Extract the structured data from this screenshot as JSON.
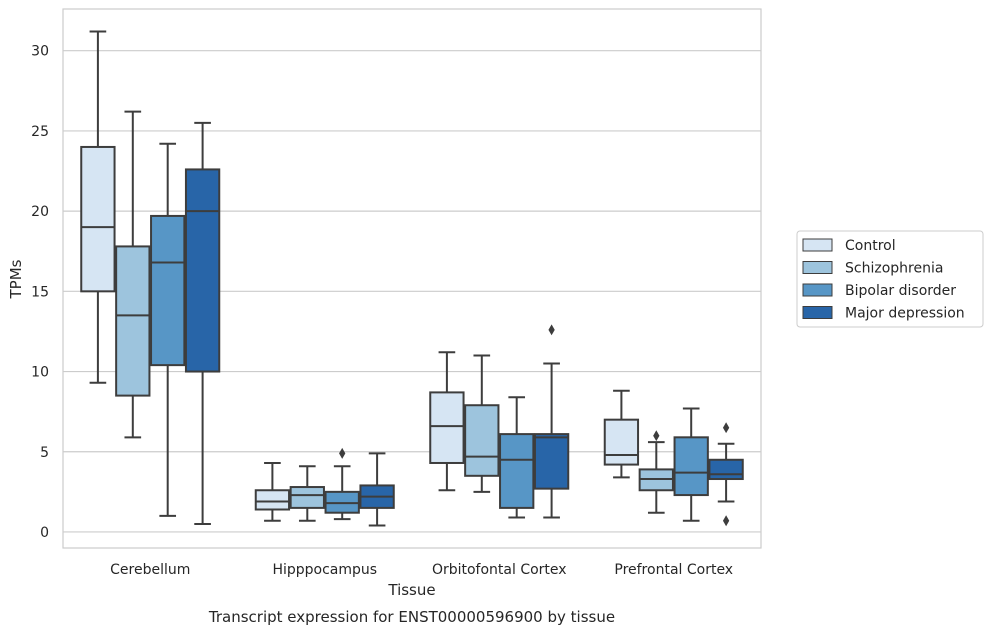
{
  "caption": "Transcript expression for ENST00000596900 by tissue",
  "chart_data": {
    "type": "box",
    "xlabel": "Tissue",
    "ylabel": "TPMs",
    "ylim": [
      -1,
      32.6
    ],
    "yticks": [
      0,
      5,
      10,
      15,
      20,
      25,
      30
    ],
    "grid": "horizontal",
    "legend_position": "right",
    "categories": [
      "Cerebellum",
      "Hipppocampus",
      "Orbitofontal Cortex",
      "Prefrontal Cortex"
    ],
    "series": [
      {
        "name": "Control",
        "color": "#d6e5f3",
        "boxes": [
          {
            "whislo": 9.3,
            "q1": 15.0,
            "med": 19.0,
            "q3": 24.0,
            "whishi": 31.2,
            "fliers": []
          },
          {
            "whislo": 0.7,
            "q1": 1.4,
            "med": 1.9,
            "q3": 2.6,
            "whishi": 4.3,
            "fliers": []
          },
          {
            "whislo": 2.6,
            "q1": 4.3,
            "med": 6.6,
            "q3": 8.7,
            "whishi": 11.2,
            "fliers": []
          },
          {
            "whislo": 3.4,
            "q1": 4.2,
            "med": 4.8,
            "q3": 7.0,
            "whishi": 8.8,
            "fliers": []
          }
        ]
      },
      {
        "name": "Schizophrenia",
        "color": "#9dc4dd",
        "boxes": [
          {
            "whislo": 5.9,
            "q1": 8.5,
            "med": 13.5,
            "q3": 17.8,
            "whishi": 26.2,
            "fliers": []
          },
          {
            "whislo": 0.7,
            "q1": 1.5,
            "med": 2.3,
            "q3": 2.8,
            "whishi": 4.1,
            "fliers": []
          },
          {
            "whislo": 2.5,
            "q1": 3.5,
            "med": 4.7,
            "q3": 7.9,
            "whishi": 11.0,
            "fliers": []
          },
          {
            "whislo": 1.2,
            "q1": 2.6,
            "med": 3.3,
            "q3": 3.9,
            "whishi": 5.6,
            "fliers": [
              6.0
            ]
          }
        ]
      },
      {
        "name": "Bipolar disorder",
        "color": "#5796c6",
        "boxes": [
          {
            "whislo": 1.0,
            "q1": 10.4,
            "med": 16.8,
            "q3": 19.7,
            "whishi": 24.2,
            "fliers": []
          },
          {
            "whislo": 0.8,
            "q1": 1.2,
            "med": 1.8,
            "q3": 2.5,
            "whishi": 4.1,
            "fliers": [
              4.9
            ]
          },
          {
            "whislo": 0.9,
            "q1": 1.5,
            "med": 4.5,
            "q3": 6.1,
            "whishi": 8.4,
            "fliers": []
          },
          {
            "whislo": 0.7,
            "q1": 2.3,
            "med": 3.7,
            "q3": 5.9,
            "whishi": 7.7,
            "fliers": []
          }
        ]
      },
      {
        "name": "Major depression",
        "color": "#2865a8",
        "boxes": [
          {
            "whislo": 0.5,
            "q1": 10.0,
            "med": 20.0,
            "q3": 22.6,
            "whishi": 25.5,
            "fliers": []
          },
          {
            "whislo": 0.4,
            "q1": 1.5,
            "med": 2.2,
            "q3": 2.9,
            "whishi": 4.9,
            "fliers": []
          },
          {
            "whislo": 0.9,
            "q1": 2.7,
            "med": 5.9,
            "q3": 6.1,
            "whishi": 10.5,
            "fliers": [
              12.6
            ]
          },
          {
            "whislo": 1.9,
            "q1": 3.3,
            "med": 3.6,
            "q3": 4.5,
            "whishi": 5.5,
            "fliers": [
              6.5,
              0.7
            ]
          }
        ]
      }
    ]
  }
}
